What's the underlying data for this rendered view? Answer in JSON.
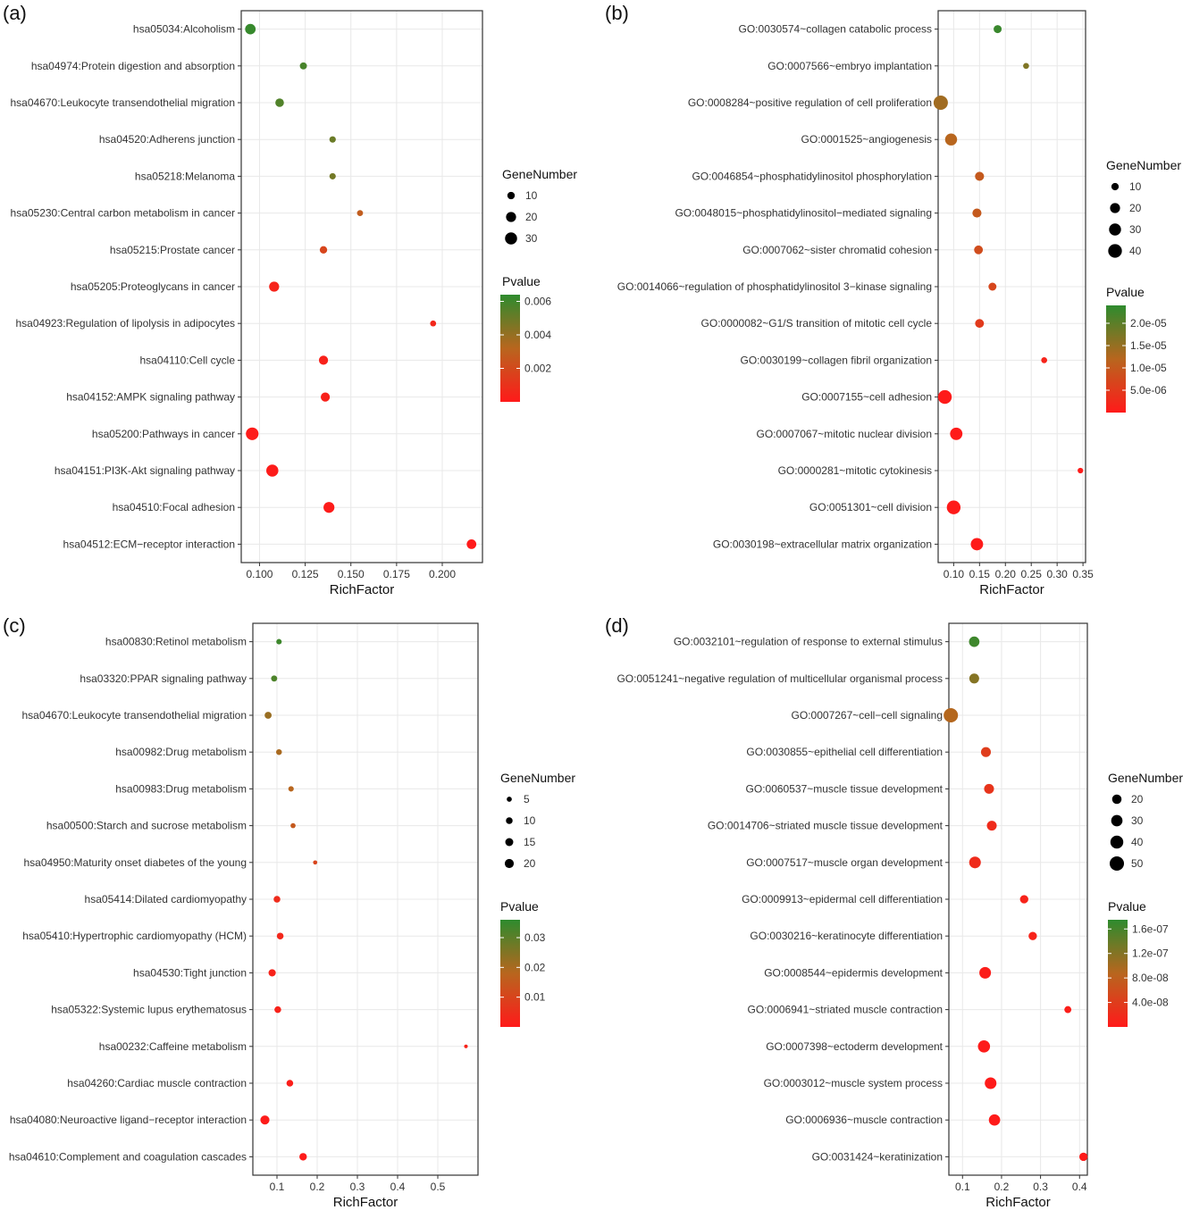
{
  "colors": {
    "low": "#ff1a1a",
    "mid": "#b8661e",
    "high": "#2e8b2e",
    "grid": "#e8e8e8",
    "frame": "#333333"
  },
  "chart_data": [
    {
      "panel": "(a)",
      "type": "scatter",
      "xlabel": "RichFactor",
      "xlim": [
        0.09,
        0.222
      ],
      "xticks": [
        0.1,
        0.125,
        0.15,
        0.175,
        0.2
      ],
      "xtick_labels": [
        "0.100",
        "0.125",
        "0.150",
        "0.175",
        "0.200"
      ],
      "size_legend_title": "GeneNumber",
      "size_legend": [
        10,
        20,
        30
      ],
      "size_range": [
        3,
        38
      ],
      "color_legend_title": "Pvalue",
      "pvalue_range": [
        0,
        0.0064
      ],
      "color_ticks": [
        0.006,
        0.004,
        0.002
      ],
      "color_tick_labels": [
        "0.006",
        "0.004",
        "0.002"
      ],
      "points": [
        {
          "term": "hsa05034:Alcoholism",
          "x": 0.095,
          "genes": 22,
          "p": 0.0062
        },
        {
          "term": "hsa04974:Protein digestion and absorption",
          "x": 0.124,
          "genes": 9,
          "p": 0.0058
        },
        {
          "term": "hsa04670:Leukocyte transendothelial migration",
          "x": 0.111,
          "genes": 14,
          "p": 0.0056
        },
        {
          "term": "hsa04520:Adherens junction",
          "x": 0.14,
          "genes": 7,
          "p": 0.005
        },
        {
          "term": "hsa05218:Melanoma",
          "x": 0.14,
          "genes": 7,
          "p": 0.0048
        },
        {
          "term": "hsa05230:Central carbon metabolism in cancer",
          "x": 0.155,
          "genes": 6,
          "p": 0.0028
        },
        {
          "term": "hsa05215:Prostate cancer",
          "x": 0.135,
          "genes": 10,
          "p": 0.0018
        },
        {
          "term": "hsa05205:Proteoglycans in cancer",
          "x": 0.108,
          "genes": 20,
          "p": 0.0004
        },
        {
          "term": "hsa04923:Regulation of lipolysis in adipocytes",
          "x": 0.195,
          "genes": 6,
          "p": 0.0006
        },
        {
          "term": "hsa04110:Cell cycle",
          "x": 0.135,
          "genes": 16,
          "p": 0.0003
        },
        {
          "term": "hsa04152:AMPK signaling pathway",
          "x": 0.136,
          "genes": 16,
          "p": 0.0003
        },
        {
          "term": "hsa05200:Pathways in cancer",
          "x": 0.096,
          "genes": 33,
          "p": 0.0001
        },
        {
          "term": "hsa04151:PI3K-Akt signaling pathway",
          "x": 0.107,
          "genes": 30,
          "p": 0.0001
        },
        {
          "term": "hsa04510:Focal adhesion",
          "x": 0.138,
          "genes": 24,
          "p": 0.0001
        },
        {
          "term": "hsa04512:ECM−receptor interaction",
          "x": 0.216,
          "genes": 18,
          "p": 2e-05
        }
      ]
    },
    {
      "panel": "(b)",
      "type": "scatter",
      "xlabel": "RichFactor",
      "xlim": [
        0.07,
        0.355
      ],
      "xticks": [
        0.1,
        0.15,
        0.2,
        0.25,
        0.3,
        0.35
      ],
      "xtick_labels": [
        "0.10",
        "0.15",
        "0.20",
        "0.25",
        "0.30",
        "0.35"
      ],
      "size_legend_title": "GeneNumber",
      "size_legend": [
        10,
        20,
        30,
        40
      ],
      "size_range": [
        3,
        50
      ],
      "color_legend_title": "Pvalue",
      "pvalue_range": [
        0,
        2.4e-05
      ],
      "color_ticks": [
        2e-05,
        1.5e-05,
        1e-05,
        5e-06
      ],
      "color_tick_labels": [
        "2.0e-05",
        "1.5e-05",
        "1.0e-05",
        "5.0e-06"
      ],
      "points": [
        {
          "term": "GO:0030574~collagen catabolic process",
          "x": 0.185,
          "genes": 12,
          "p": 2.3e-05
        },
        {
          "term": "GO:0007566~embryo implantation",
          "x": 0.24,
          "genes": 6,
          "p": 1.7e-05
        },
        {
          "term": "GO:0008284~positive regulation of cell proliferation",
          "x": 0.075,
          "genes": 44,
          "p": 1.4e-05
        },
        {
          "term": "GO:0001525~angiogenesis",
          "x": 0.095,
          "genes": 30,
          "p": 1.2e-05
        },
        {
          "term": "GO:0046854~phosphatidylinositol phosphorylation",
          "x": 0.15,
          "genes": 16,
          "p": 1e-05
        },
        {
          "term": "GO:0048015~phosphatidylinositol−mediated signaling",
          "x": 0.145,
          "genes": 16,
          "p": 1e-05
        },
        {
          "term": "GO:0007062~sister chromatid cohesion",
          "x": 0.148,
          "genes": 15,
          "p": 8e-06
        },
        {
          "term": "GO:0014066~regulation of phosphatidylinositol 3−kinase signaling",
          "x": 0.175,
          "genes": 12,
          "p": 7e-06
        },
        {
          "term": "GO:0000082~G1/S transition of mitotic cell cycle",
          "x": 0.15,
          "genes": 15,
          "p": 5e-06
        },
        {
          "term": "GO:0030199~collagen fibril organization",
          "x": 0.275,
          "genes": 6,
          "p": 1.5e-06
        },
        {
          "term": "GO:0007155~cell adhesion",
          "x": 0.083,
          "genes": 40,
          "p": 1e-07
        },
        {
          "term": "GO:0007067~mitotic nuclear division",
          "x": 0.105,
          "genes": 32,
          "p": 1e-07
        },
        {
          "term": "GO:0000281~mitotic cytokinesis",
          "x": 0.345,
          "genes": 5,
          "p": 2e-07
        },
        {
          "term": "GO:0051301~cell division",
          "x": 0.1,
          "genes": 40,
          "p": 1e-07
        },
        {
          "term": "GO:0030198~extracellular matrix organization",
          "x": 0.145,
          "genes": 32,
          "p": 1e-07
        }
      ]
    },
    {
      "panel": "(c)",
      "type": "scatter",
      "xlabel": "RichFactor",
      "xlim": [
        0.04,
        0.6
      ],
      "xticks": [
        0.1,
        0.2,
        0.3,
        0.4,
        0.5
      ],
      "xtick_labels": [
        "0.1",
        "0.2",
        "0.3",
        "0.4",
        "0.5"
      ],
      "size_legend_title": "GeneNumber",
      "size_legend": [
        5,
        10,
        15,
        20
      ],
      "size_range": [
        2,
        20
      ],
      "color_legend_title": "Pvalue",
      "pvalue_range": [
        0,
        0.036
      ],
      "color_ticks": [
        0.03,
        0.02,
        0.01
      ],
      "color_tick_labels": [
        "0.03",
        "0.02",
        "0.01"
      ],
      "points": [
        {
          "term": "hsa00830:Retinol metabolism",
          "x": 0.105,
          "genes": 6,
          "p": 0.034
        },
        {
          "term": "hsa03320:PPAR signaling pathway",
          "x": 0.093,
          "genes": 8,
          "p": 0.032
        },
        {
          "term": "hsa04670:Leukocyte transendothelial migration",
          "x": 0.078,
          "genes": 11,
          "p": 0.022
        },
        {
          "term": "hsa00982:Drug metabolism",
          "x": 0.105,
          "genes": 7,
          "p": 0.02
        },
        {
          "term": "hsa00983:Drug metabolism",
          "x": 0.135,
          "genes": 6,
          "p": 0.018
        },
        {
          "term": "hsa00500:Starch and sucrose metabolism",
          "x": 0.14,
          "genes": 5,
          "p": 0.015
        },
        {
          "term": "hsa04950:Maturity onset diabetes of the young",
          "x": 0.195,
          "genes": 3,
          "p": 0.01
        },
        {
          "term": "hsa05414:Dilated cardiomyopathy",
          "x": 0.1,
          "genes": 10,
          "p": 0.004
        },
        {
          "term": "hsa05410:Hypertrophic cardiomyopathy (HCM)",
          "x": 0.108,
          "genes": 10,
          "p": 0.003
        },
        {
          "term": "hsa04530:Tight junction",
          "x": 0.088,
          "genes": 12,
          "p": 0.002
        },
        {
          "term": "hsa05322:Systemic lupus erythematosus",
          "x": 0.102,
          "genes": 10,
          "p": 0.002
        },
        {
          "term": "hsa00232:Caffeine metabolism",
          "x": 0.57,
          "genes": 2,
          "p": 0.002
        },
        {
          "term": "hsa04260:Cardiac muscle contraction",
          "x": 0.132,
          "genes": 10,
          "p": 0.001
        },
        {
          "term": "hsa04080:Neuroactive ligand−receptor interaction",
          "x": 0.07,
          "genes": 20,
          "p": 0.0005
        },
        {
          "term": "hsa04610:Complement and coagulation cascades",
          "x": 0.165,
          "genes": 13,
          "p": 0.0003
        }
      ]
    },
    {
      "panel": "(d)",
      "type": "scatter",
      "xlabel": "RichFactor",
      "xlim": [
        0.065,
        0.42
      ],
      "xticks": [
        0.1,
        0.2,
        0.3,
        0.4
      ],
      "xtick_labels": [
        "0.1",
        "0.2",
        "0.3",
        "0.4"
      ],
      "size_legend_title": "GeneNumber",
      "size_legend": [
        20,
        30,
        40,
        50
      ],
      "size_range": [
        10,
        55
      ],
      "color_legend_title": "Pvalue",
      "pvalue_range": [
        0,
        1.75e-07
      ],
      "color_ticks": [
        1.6e-07,
        1.2e-07,
        8e-08,
        4e-08
      ],
      "color_tick_labels": [
        "1.6e-07",
        "1.2e-07",
        "8.0e-08",
        "4.0e-08"
      ],
      "points": [
        {
          "term": "GO:0032101~regulation of response to external stimulus",
          "x": 0.13,
          "genes": 25,
          "p": 1.65e-07
        },
        {
          "term": "GO:0051241~negative regulation of multicellular organismal process",
          "x": 0.13,
          "genes": 22,
          "p": 1.2e-07
        },
        {
          "term": "GO:0007267~cell−cell signaling",
          "x": 0.07,
          "genes": 50,
          "p": 9e-08
        },
        {
          "term": "GO:0030855~epithelial cell differentiation",
          "x": 0.16,
          "genes": 22,
          "p": 4e-08
        },
        {
          "term": "GO:0060537~muscle tissue development",
          "x": 0.168,
          "genes": 22,
          "p": 3e-08
        },
        {
          "term": "GO:0014706~striated muscle tissue development",
          "x": 0.175,
          "genes": 22,
          "p": 2e-08
        },
        {
          "term": "GO:0007517~muscle organ development",
          "x": 0.132,
          "genes": 32,
          "p": 2e-08
        },
        {
          "term": "GO:0009913~epidermal cell differentiation",
          "x": 0.258,
          "genes": 15,
          "p": 1e-08
        },
        {
          "term": "GO:0030216~keratinocyte differentiation",
          "x": 0.28,
          "genes": 15,
          "p": 1e-08
        },
        {
          "term": "GO:0008544~epidermis development",
          "x": 0.158,
          "genes": 32,
          "p": 5e-09
        },
        {
          "term": "GO:0006941~striated muscle contraction",
          "x": 0.37,
          "genes": 10,
          "p": 5e-09
        },
        {
          "term": "GO:0007398~ectoderm development",
          "x": 0.155,
          "genes": 35,
          "p": 2e-09
        },
        {
          "term": "GO:0003012~muscle system process",
          "x": 0.172,
          "genes": 32,
          "p": 1e-09
        },
        {
          "term": "GO:0006936~muscle contraction",
          "x": 0.182,
          "genes": 30,
          "p": 1e-09
        },
        {
          "term": "GO:0031424~keratinization",
          "x": 0.41,
          "genes": 15,
          "p": 1e-09
        }
      ]
    }
  ]
}
